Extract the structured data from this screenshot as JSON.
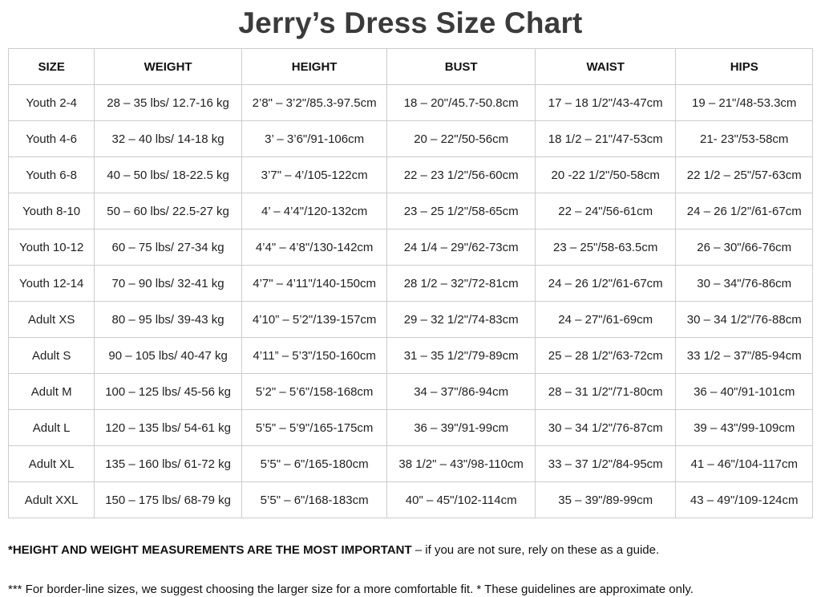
{
  "title": "Jerry’s Dress Size Chart",
  "chart_data": {
    "type": "table",
    "title": "Jerry’s Dress Size Chart",
    "headers": [
      "SIZE",
      "WEIGHT",
      "HEIGHT",
      "BUST",
      "WAIST",
      "HIPS"
    ],
    "rows": [
      [
        "Youth 2-4",
        "28 – 35 lbs/ 12.7-16 kg",
        "2’8\" – 3’2\"/85.3-97.5cm",
        "18 – 20\"/45.7-50.8cm",
        "17 – 18 1/2\"/43-47cm",
        "19 – 21\"/48-53.3cm"
      ],
      [
        "Youth 4-6",
        "32 – 40 lbs/ 14-18 kg",
        "3’ – 3’6\"/91-106cm",
        "20 – 22\"/50-56cm",
        "18 1/2 – 21\"/47-53cm",
        "21- 23\"/53-58cm"
      ],
      [
        "Youth 6-8",
        "40 – 50 lbs/ 18-22.5 kg",
        "3’7\" – 4’/105-122cm",
        "22 – 23 1/2\"/56-60cm",
        "20 -22 1/2\"/50-58cm",
        "22 1/2 – 25\"/57-63cm"
      ],
      [
        "Youth 8-10",
        "50 – 60 lbs/ 22.5-27 kg",
        "4’ – 4’4\"/120-132cm",
        "23 – 25 1/2\"/58-65cm",
        "22 – 24\"/56-61cm",
        "24 – 26 1/2\"/61-67cm"
      ],
      [
        "Youth 10-12",
        "60 – 75 lbs/ 27-34 kg",
        "4’4\" – 4’8\"/130-142cm",
        "24 1/4 – 29\"/62-73cm",
        "23 – 25\"/58-63.5cm",
        "26 – 30\"/66-76cm"
      ],
      [
        "Youth 12-14",
        "70 – 90 lbs/ 32-41 kg",
        "4’7\" – 4’11\"/140-150cm",
        "28 1/2 – 32\"/72-81cm",
        "24 – 26 1/2\"/61-67cm",
        "30 – 34\"/76-86cm"
      ],
      [
        "Adult XS",
        "80 – 95 lbs/ 39-43 kg",
        "4’10” – 5’2\"/139-157cm",
        "29 – 32 1/2\"/74-83cm",
        "24 – 27\"/61-69cm",
        "30 – 34 1/2\"/76-88cm"
      ],
      [
        "Adult S",
        "90 – 105 lbs/ 40-47 kg",
        "4’11” – 5’3\"/150-160cm",
        "31 – 35 1/2\"/79-89cm",
        "25 – 28 1/2\"/63-72cm",
        "33 1/2 – 37\"/85-94cm"
      ],
      [
        "Adult M",
        "100 – 125 lbs/ 45-56 kg",
        "5’2\" – 5’6\"/158-168cm",
        "34 – 37\"/86-94cm",
        "28 – 31 1/2\"/71-80cm",
        "36 – 40\"/91-101cm"
      ],
      [
        "Adult L",
        "120 – 135 lbs/ 54-61 kg",
        "5’5\" – 5’9\"/165-175cm",
        "36 – 39\"/91-99cm",
        "30 – 34 1/2\"/76-87cm",
        "39 – 43\"/99-109cm"
      ],
      [
        "Adult XL",
        "135 – 160 lbs/ 61-72 kg",
        "5’5\" – 6\"/165-180cm",
        "38 1/2\" – 43\"/98-110cm",
        "33 – 37 1/2\"/84-95cm",
        "41 – 46\"/104-117cm"
      ],
      [
        "Adult XXL",
        "150 – 175 lbs/ 68-79 kg",
        "5’5\" – 6\"/168-183cm",
        "40\" – 45\"/102-114cm",
        "35 – 39\"/89-99cm",
        "43 – 49\"/109-124cm"
      ]
    ]
  },
  "notes": {
    "primary_bold": "*HEIGHT AND WEIGHT MEASUREMENTS ARE THE MOST IMPORTANT",
    "primary_rest": " – if you are not sure, rely on these as a guide.",
    "secondary": "*** For border-line sizes, we suggest choosing the larger size for a more comfortable fit. * These guidelines are approximate only."
  },
  "colors": {
    "title_text": "#3b3b3b",
    "table_border": "#cccccc",
    "cell_text": "#1f1f1f",
    "background": "#ffffff"
  }
}
